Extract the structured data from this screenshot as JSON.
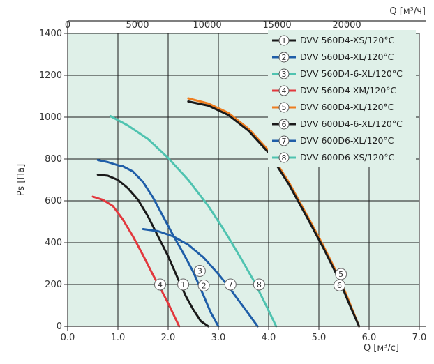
{
  "chart_data": {
    "type": "line",
    "xlabel": "Q [м³/с]",
    "ylabel": "Ps [Па]",
    "x2label": "Q [м³/ч]",
    "xlim": [
      0,
      7
    ],
    "ylim": [
      0,
      1400
    ],
    "x2lim": [
      0,
      25200
    ],
    "xticks": [
      "0.0",
      "1.0",
      "2.0",
      "3.0",
      "4.0",
      "5.0",
      "6.0",
      "7.0"
    ],
    "yticks": [
      "0",
      "200",
      "400",
      "600",
      "800",
      "1000",
      "1200",
      "1400"
    ],
    "x2ticks": [
      "0",
      "5000",
      "10000",
      "15000",
      "20000"
    ],
    "plot_background": "#dff0e8",
    "grid": true,
    "legend_position": "top-right",
    "series": [
      {
        "marker": "1",
        "name": "DVV 560D4-XS/120°C",
        "color": "#1a1a1a",
        "x": [
          0.6,
          0.8,
          1.0,
          1.2,
          1.4,
          1.6,
          1.8,
          2.0,
          2.2,
          2.35,
          2.5,
          2.65,
          2.8
        ],
        "y": [
          725,
          720,
          700,
          660,
          605,
          525,
          430,
          335,
          225,
          145,
          80,
          25,
          0
        ],
        "label_at": [
          2.3,
          200
        ]
      },
      {
        "marker": "2",
        "name": "DVV 560D4-XL/120°C",
        "color": "#1f5ea8",
        "x": [
          0.6,
          0.8,
          1.0,
          1.1,
          1.3,
          1.5,
          1.7,
          1.9,
          2.1,
          2.3,
          2.5,
          2.7,
          2.85,
          3.0
        ],
        "y": [
          795,
          785,
          770,
          765,
          740,
          690,
          615,
          525,
          435,
          350,
          260,
          150,
          65,
          0
        ],
        "label_at": [
          2.71,
          195
        ]
      },
      {
        "marker": "3",
        "name": "DVV 560D4-6-XL/120°C",
        "color": "#4fc3b0",
        "x": [
          0.85,
          1.2,
          1.6,
          2.0,
          2.4,
          2.8,
          3.1,
          3.4,
          3.7,
          3.95,
          4.15
        ],
        "y": [
          1005,
          960,
          895,
          805,
          700,
          575,
          465,
          345,
          220,
          100,
          0
        ],
        "label_at": [
          2.63,
          265
        ]
      },
      {
        "marker": "4",
        "name": "DVV 560D4-XM/120°C",
        "color": "#e2383d",
        "x": [
          0.5,
          0.7,
          0.9,
          1.1,
          1.3,
          1.5,
          1.7,
          1.85,
          2.0,
          2.1,
          2.22
        ],
        "y": [
          620,
          605,
          575,
          510,
          430,
          340,
          245,
          180,
          110,
          60,
          0
        ],
        "label_at": [
          1.84,
          200
        ]
      },
      {
        "marker": "5",
        "name": "DVV 600D4-XL/120°C",
        "color": "#ee7d1f",
        "x": [
          2.4,
          2.8,
          3.2,
          3.6,
          4.0,
          4.4,
          4.8,
          5.1,
          5.4,
          5.6,
          5.8
        ],
        "y": [
          1090,
          1065,
          1020,
          945,
          840,
          690,
          515,
          380,
          235,
          120,
          0
        ],
        "label_at": [
          5.44,
          250
        ]
      },
      {
        "marker": "6",
        "name": "DVV 600D4-6-XL/120°C",
        "color": "#1a1a1a",
        "x": [
          2.4,
          2.8,
          3.2,
          3.6,
          4.0,
          4.4,
          4.8,
          5.1,
          5.4,
          5.6,
          5.8
        ],
        "y": [
          1075,
          1055,
          1010,
          935,
          830,
          680,
          505,
          370,
          225,
          110,
          0
        ],
        "label_at": [
          5.41,
          196
        ]
      },
      {
        "marker": "7",
        "name": "DVV 600D6-XL/120°C",
        "color": "#1f5ea8",
        "x": [
          1.5,
          1.8,
          2.1,
          2.4,
          2.7,
          3.0,
          3.2,
          3.4,
          3.6,
          3.78
        ],
        "y": [
          465,
          455,
          430,
          390,
          330,
          250,
          190,
          125,
          60,
          0
        ],
        "label_at": [
          3.24,
          200
        ]
      },
      {
        "marker": "8",
        "name": "DVV 600D6-XS/120°C",
        "color": "#4fc3b0",
        "x": [],
        "y": [],
        "label_at": [
          3.81,
          200
        ]
      }
    ]
  }
}
